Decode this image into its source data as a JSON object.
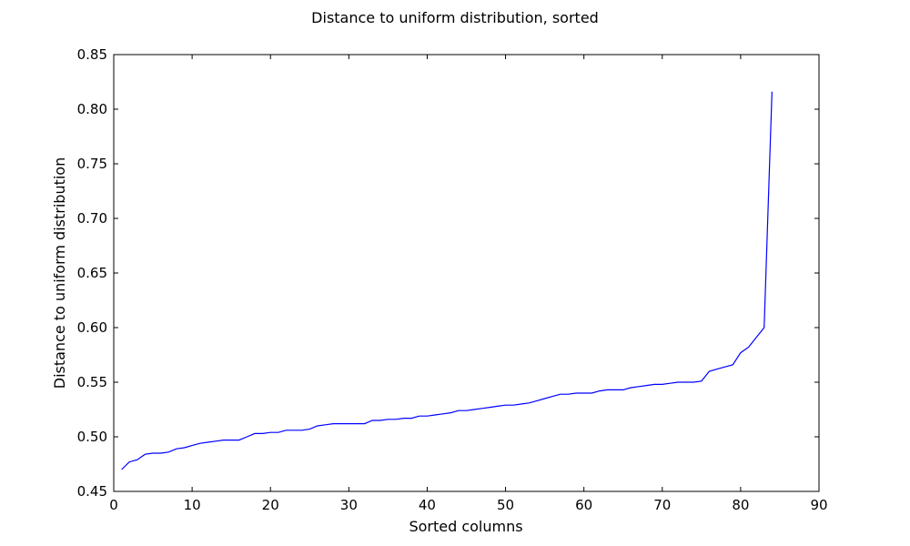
{
  "chart_data": {
    "type": "line",
    "title": "Distance to uniform distribution, sorted",
    "xlabel": "Sorted columns",
    "ylabel": "Distance to uniform distribution",
    "xlim": [
      0,
      90
    ],
    "ylim": [
      0.45,
      0.85
    ],
    "xticks": [
      0,
      10,
      20,
      30,
      40,
      50,
      60,
      70,
      80,
      90
    ],
    "yticks": [
      0.45,
      0.5,
      0.55,
      0.6,
      0.65,
      0.7,
      0.75,
      0.8,
      0.85
    ],
    "xtick_labels": [
      "0",
      "10",
      "20",
      "30",
      "40",
      "50",
      "60",
      "70",
      "80",
      "90"
    ],
    "ytick_labels": [
      "0.45",
      "0.50",
      "0.55",
      "0.60",
      "0.65",
      "0.70",
      "0.75",
      "0.80",
      "0.85"
    ],
    "grid": false,
    "series": [
      {
        "color": "#0000ff",
        "x": [
          1,
          2,
          3,
          4,
          5,
          6,
          7,
          8,
          9,
          10,
          11,
          12,
          13,
          14,
          15,
          16,
          17,
          18,
          19,
          20,
          21,
          22,
          23,
          24,
          25,
          26,
          27,
          28,
          29,
          30,
          31,
          32,
          33,
          34,
          35,
          36,
          37,
          38,
          39,
          40,
          41,
          42,
          43,
          44,
          45,
          46,
          47,
          48,
          49,
          50,
          51,
          52,
          53,
          54,
          55,
          56,
          57,
          58,
          59,
          60,
          61,
          62,
          63,
          64,
          65,
          66,
          67,
          68,
          69,
          70,
          71,
          72,
          73,
          74,
          75,
          76,
          77,
          78,
          79,
          80,
          81,
          82,
          83,
          84
        ],
        "y": [
          0.47,
          0.477,
          0.479,
          0.484,
          0.485,
          0.485,
          0.486,
          0.489,
          0.49,
          0.492,
          0.494,
          0.495,
          0.496,
          0.497,
          0.497,
          0.497,
          0.5,
          0.503,
          0.503,
          0.504,
          0.504,
          0.506,
          0.506,
          0.506,
          0.507,
          0.51,
          0.511,
          0.512,
          0.512,
          0.512,
          0.512,
          0.512,
          0.515,
          0.515,
          0.516,
          0.516,
          0.517,
          0.517,
          0.519,
          0.519,
          0.52,
          0.521,
          0.522,
          0.524,
          0.524,
          0.525,
          0.526,
          0.527,
          0.528,
          0.529,
          0.529,
          0.53,
          0.531,
          0.533,
          0.535,
          0.537,
          0.539,
          0.539,
          0.54,
          0.54,
          0.54,
          0.542,
          0.543,
          0.543,
          0.543,
          0.545,
          0.546,
          0.547,
          0.548,
          0.548,
          0.549,
          0.55,
          0.55,
          0.55,
          0.551,
          0.56,
          0.562,
          0.564,
          0.566,
          0.577,
          0.582,
          0.591,
          0.6,
          0.816
        ]
      }
    ]
  }
}
